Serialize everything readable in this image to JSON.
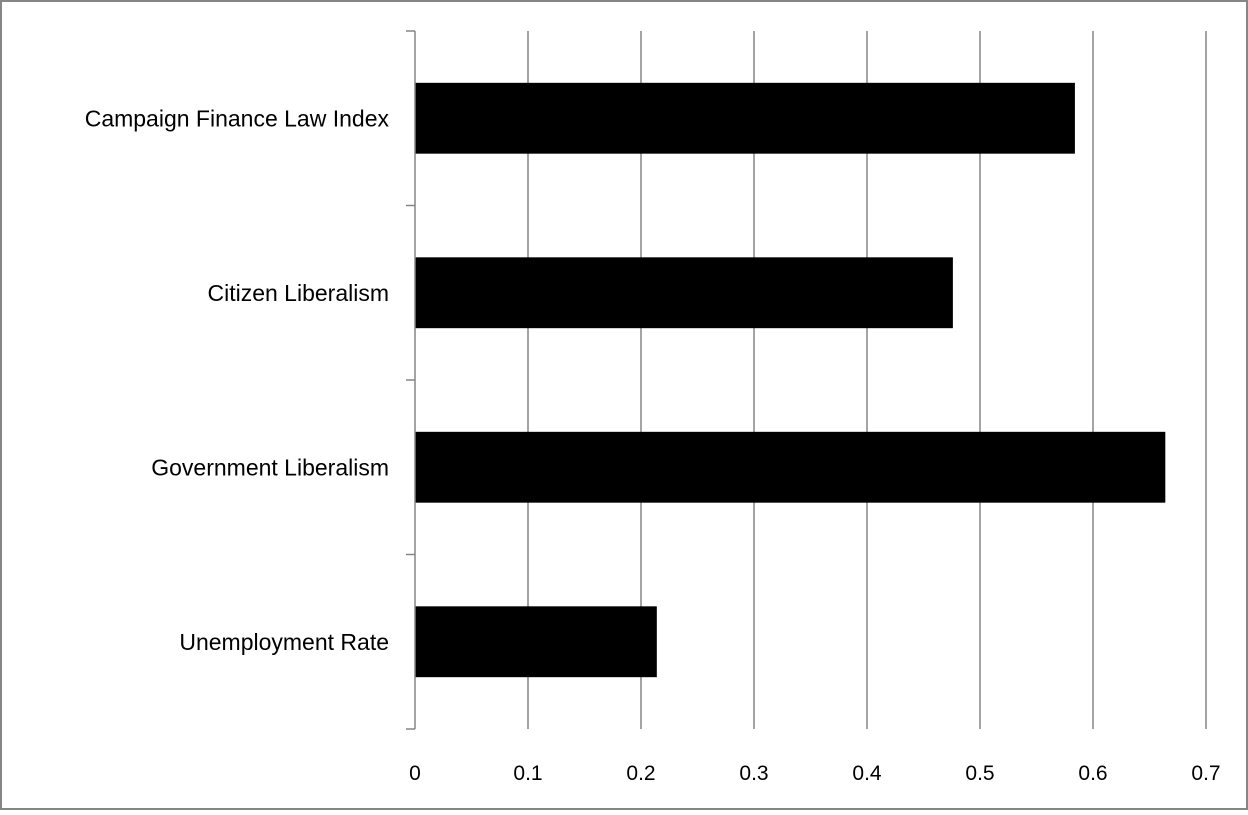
{
  "chart_data": {
    "type": "bar",
    "orientation": "horizontal",
    "categories": [
      "Campaign Finance Law Index",
      "Citizen Liberalism",
      "Government Liberalism",
      "Unemployment Rate"
    ],
    "values": [
      0.584,
      0.476,
      0.664,
      0.214
    ],
    "x_ticks": [
      "0",
      "0.1",
      "0.2",
      "0.3",
      "0.4",
      "0.5",
      "0.6",
      "0.7"
    ],
    "xlim": [
      0,
      0.7
    ],
    "grid": "vertical",
    "legend": "none",
    "colors": {
      "bar": "#000000",
      "grid": "#868686",
      "axis": "#868686",
      "frame": "#868686"
    }
  }
}
